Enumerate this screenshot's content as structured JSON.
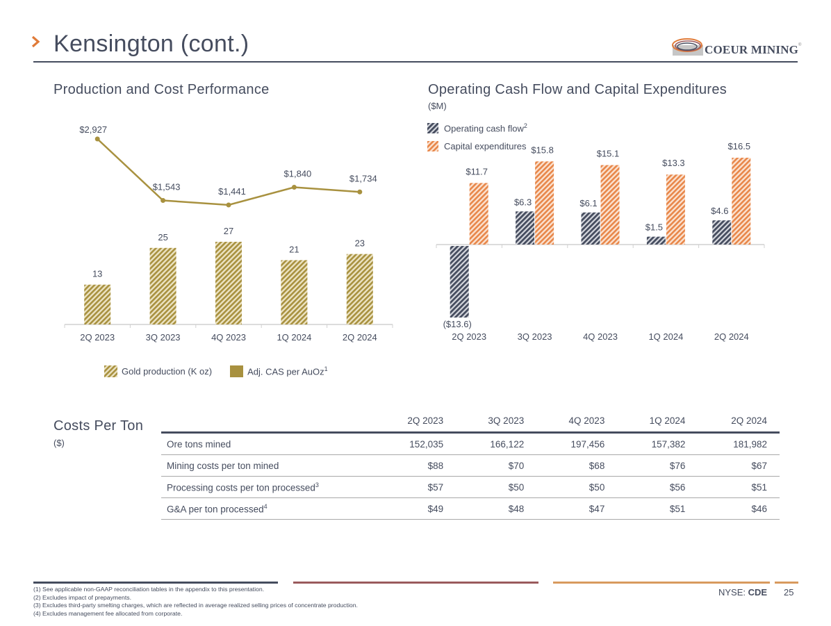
{
  "header": {
    "title": "Kensington (cont.)",
    "logo_text": "COEUR MINING",
    "logo_registered": "®"
  },
  "colors": {
    "navy": "#454c5e",
    "orange": "#e07b39",
    "gold": "#a8913f",
    "maroon": "#9a5a5c",
    "tan": "#d89a5e"
  },
  "production_section": {
    "title": "Production and Cost Performance",
    "legend": [
      {
        "label": "Gold production (K oz)",
        "sup": ""
      },
      {
        "label": "Adj. CAS per AuOz",
        "sup": "1"
      }
    ]
  },
  "cashflow_section": {
    "title": "Operating Cash Flow and Capital Expenditures",
    "subtitle": "($M)",
    "legend": [
      {
        "label": "Operating cash flow",
        "sup": "2"
      },
      {
        "label": "Capital expenditures",
        "sup": ""
      }
    ]
  },
  "chart_data": [
    {
      "type": "bar",
      "title": "Production and Cost Performance",
      "categories": [
        "2Q 2023",
        "3Q 2023",
        "4Q 2023",
        "1Q 2024",
        "2Q 2024"
      ],
      "series": [
        {
          "name": "Gold production (K oz)",
          "type": "bar",
          "values": [
            13,
            25,
            27,
            21,
            23
          ],
          "labels": [
            "13",
            "25",
            "27",
            "21",
            "23"
          ]
        },
        {
          "name": "Adj. CAS per AuOz",
          "type": "line",
          "values": [
            2927,
            1543,
            1441,
            1840,
            1734
          ],
          "labels": [
            "$2,927",
            "$1,543",
            "$1,441",
            "$1,840",
            "$1,734"
          ]
        }
      ],
      "legend_position": "bottom",
      "grid": false
    },
    {
      "type": "bar",
      "title": "Operating Cash Flow and Capital Expenditures",
      "ylabel": "($M)",
      "categories": [
        "2Q 2023",
        "3Q 2023",
        "4Q 2023",
        "1Q 2024",
        "2Q 2024"
      ],
      "series": [
        {
          "name": "Operating cash flow",
          "values": [
            -13.6,
            6.3,
            6.1,
            1.5,
            4.6
          ],
          "labels": [
            "($13.6)",
            "$6.3",
            "$6.1",
            "$1.5",
            "$4.6"
          ]
        },
        {
          "name": "Capital expenditures",
          "values": [
            11.7,
            15.8,
            15.1,
            13.3,
            16.5
          ],
          "labels": [
            "$11.7",
            "$15.8",
            "$15.1",
            "$13.3",
            "$16.5"
          ]
        }
      ],
      "legend_position": "top-left",
      "grid": false
    }
  ],
  "costs_table": {
    "title": "Costs Per Ton",
    "subtitle": "($)",
    "columns": [
      "2Q 2023",
      "3Q 2023",
      "4Q 2023",
      "1Q 2024",
      "2Q 2024"
    ],
    "rows": [
      {
        "label": "Ore tons mined",
        "sup": "",
        "values": [
          "152,035",
          "166,122",
          "197,456",
          "157,382",
          "181,982"
        ]
      },
      {
        "label": "Mining costs per ton mined",
        "sup": "",
        "values": [
          "$88",
          "$70",
          "$68",
          "$76",
          "$67"
        ]
      },
      {
        "label": "Processing costs per ton processed",
        "sup": "3",
        "values": [
          "$57",
          "$50",
          "$50",
          "$56",
          "$51"
        ]
      },
      {
        "label": "G&A per ton processed",
        "sup": "4",
        "values": [
          "$49",
          "$48",
          "$47",
          "$51",
          "$46"
        ]
      }
    ]
  },
  "footnotes": [
    "(1) See applicable non-GAAP reconciliation tables in the appendix to this presentation.",
    "(2) Excludes impact of prepayments.",
    "(3) Excludes third-party smelting charges, which are reflected in average realized selling prices of concentrate production.",
    "(4) Excludes management fee allocated from corporate."
  ],
  "footer": {
    "exchange_label": "NYSE: ",
    "ticker": "CDE",
    "page_number": "25"
  }
}
